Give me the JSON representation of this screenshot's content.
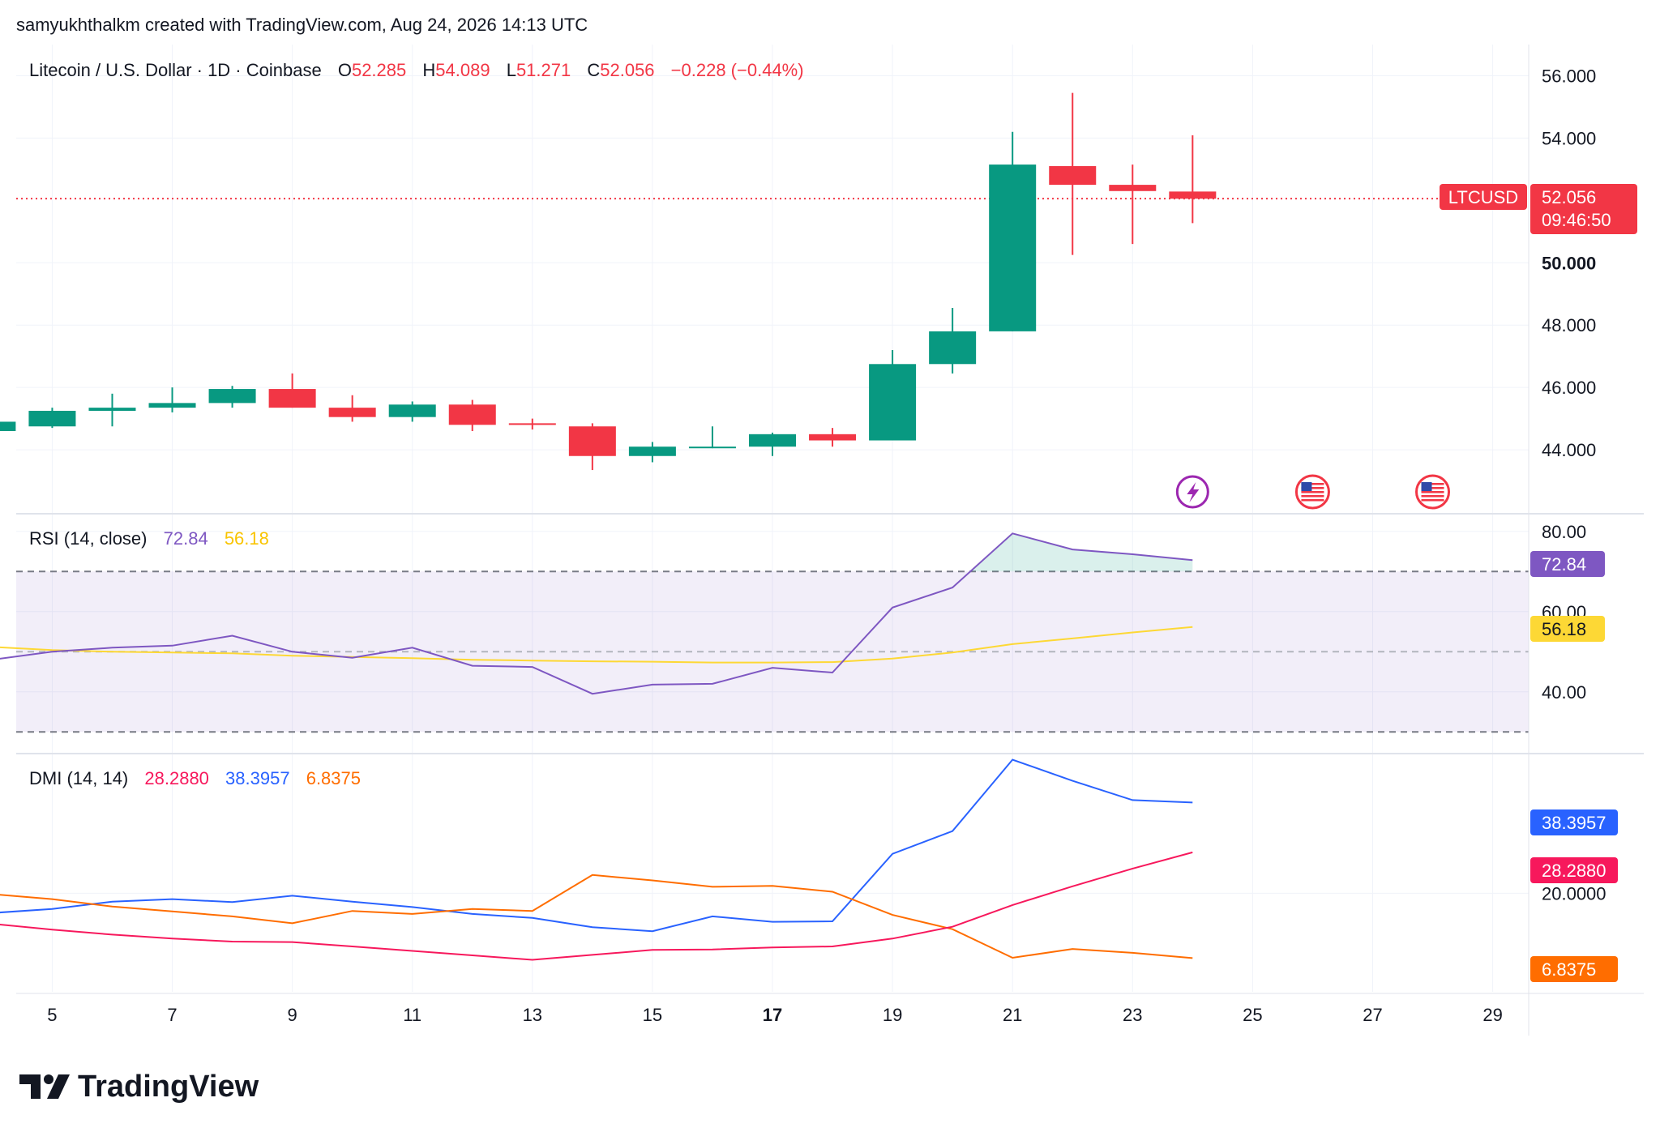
{
  "attribution": "samyukhthalkm created with TradingView.com, Aug 24, 2026 14:13 UTC",
  "brand": "TradingView",
  "colors": {
    "up": "#089981",
    "down": "#f23645",
    "rsi": "#7e57c2",
    "rsi_ma": "#fdd835",
    "dmi_plus": "#2962ff",
    "dmi_minus": "#ff6d00",
    "adx": "#f7185c",
    "rsi_band": "#7e57c2"
  },
  "header": {
    "symbol": "Litecoin / U.S. Dollar · 1D · Coinbase",
    "o_label": "O",
    "o_value": "52.285",
    "h_label": "H",
    "h_value": "54.089",
    "l_label": "L",
    "l_value": "51.271",
    "c_label": "C",
    "c_value": "52.056",
    "change": "−0.228 (−0.44%)"
  },
  "price_tag": {
    "ticker": "LTCUSD",
    "price": "52.056",
    "countdown": "09:46:50"
  },
  "events": [
    {
      "day": 24,
      "icon": "lightning-icon"
    },
    {
      "day": 26,
      "icon": "us-flag-icon"
    },
    {
      "day": 28,
      "icon": "us-flag-icon"
    }
  ],
  "rsi_panel": {
    "title": "RSI (14, close)",
    "rsi_value": "72.84",
    "ma_value": "56.18"
  },
  "dmi_panel": {
    "title": "DMI (14, 14)",
    "adx_value": "28.2880",
    "plus_value": "38.3957",
    "minus_value": "6.8375"
  },
  "chart_data": [
    {
      "type": "candlestick",
      "title": "Litecoin / U.S. Dollar · 1D · Coinbase",
      "x_ticks": [
        "5",
        "7",
        "9",
        "11",
        "13",
        "15",
        "17",
        "19",
        "21",
        "23",
        "25",
        "27",
        "29"
      ],
      "x_range": [
        4.4,
        29.6
      ],
      "y_ticks": [
        "44.000",
        "46.000",
        "48.000",
        "50.000",
        "54.000",
        "56.000"
      ],
      "ylim": [
        42.0,
        57.0
      ],
      "last_price": 52.056,
      "candles": [
        {
          "day": 4,
          "o": 44.6,
          "h": 45.3,
          "l": 44.5,
          "c": 44.9
        },
        {
          "day": 5,
          "o": 44.75,
          "h": 45.35,
          "l": 44.7,
          "c": 45.25
        },
        {
          "day": 6,
          "o": 45.25,
          "h": 45.8,
          "l": 44.75,
          "c": 45.35
        },
        {
          "day": 7,
          "o": 45.35,
          "h": 46.0,
          "l": 45.2,
          "c": 45.5
        },
        {
          "day": 8,
          "o": 45.5,
          "h": 46.05,
          "l": 45.35,
          "c": 45.95
        },
        {
          "day": 9,
          "o": 45.95,
          "h": 46.45,
          "l": 45.35,
          "c": 45.35
        },
        {
          "day": 10,
          "o": 45.35,
          "h": 45.75,
          "l": 44.9,
          "c": 45.05
        },
        {
          "day": 11,
          "o": 45.05,
          "h": 45.55,
          "l": 44.9,
          "c": 45.45
        },
        {
          "day": 12,
          "o": 45.45,
          "h": 45.6,
          "l": 44.6,
          "c": 44.8
        },
        {
          "day": 13,
          "o": 44.85,
          "h": 45.0,
          "l": 44.65,
          "c": 44.8
        },
        {
          "day": 14,
          "o": 44.75,
          "h": 44.85,
          "l": 43.35,
          "c": 43.8
        },
        {
          "day": 15,
          "o": 43.8,
          "h": 44.25,
          "l": 43.6,
          "c": 44.1
        },
        {
          "day": 16,
          "o": 44.1,
          "h": 44.75,
          "l": 44.05,
          "c": 44.1
        },
        {
          "day": 17,
          "o": 44.1,
          "h": 44.55,
          "l": 43.8,
          "c": 44.5
        },
        {
          "day": 18,
          "o": 44.5,
          "h": 44.7,
          "l": 44.1,
          "c": 44.3
        },
        {
          "day": 19,
          "o": 44.3,
          "h": 47.2,
          "l": 44.3,
          "c": 46.75
        },
        {
          "day": 20,
          "o": 46.75,
          "h": 48.55,
          "l": 46.45,
          "c": 47.8
        },
        {
          "day": 21,
          "o": 47.8,
          "h": 54.2,
          "l": 47.8,
          "c": 53.15
        },
        {
          "day": 22,
          "o": 53.1,
          "h": 55.45,
          "l": 50.25,
          "c": 52.5
        },
        {
          "day": 23,
          "o": 52.5,
          "h": 53.15,
          "l": 50.6,
          "c": 52.3
        },
        {
          "day": 24,
          "o": 52.285,
          "h": 54.089,
          "l": 51.271,
          "c": 52.056
        }
      ]
    },
    {
      "type": "line",
      "title": "RSI (14, close)",
      "y_ticks": [
        "40.00",
        "60.00",
        "80.00"
      ],
      "ylim": [
        25,
        84
      ],
      "bands": {
        "upper": 70,
        "middle": 50,
        "lower": 30
      },
      "x": [
        4,
        5,
        6,
        7,
        8,
        9,
        10,
        11,
        12,
        13,
        14,
        15,
        16,
        17,
        18,
        19,
        20,
        21,
        22,
        23,
        24
      ],
      "series": [
        {
          "name": "RSI",
          "values": [
            48.0,
            50.0,
            51.0,
            51.5,
            54.0,
            50.0,
            48.5,
            51.0,
            46.5,
            46.2,
            39.5,
            41.8,
            42.0,
            46.0,
            44.8,
            61.0,
            66.0,
            79.5,
            75.5,
            74.3,
            72.84
          ]
        },
        {
          "name": "RSI MA",
          "values": [
            51.2,
            50.4,
            50.0,
            49.8,
            49.6,
            49.0,
            48.7,
            48.4,
            48.0,
            47.8,
            47.6,
            47.5,
            47.3,
            47.3,
            47.4,
            48.3,
            49.8,
            51.9,
            53.3,
            54.8,
            56.18
          ]
        }
      ]
    },
    {
      "type": "line",
      "title": "DMI (14, 14)",
      "y_ticks": [
        "20.0000"
      ],
      "ylim": [
        0,
        48
      ],
      "x": [
        4,
        5,
        6,
        7,
        8,
        9,
        10,
        11,
        12,
        13,
        14,
        15,
        16,
        17,
        18,
        19,
        20,
        21,
        22,
        23,
        24
      ],
      "series": [
        {
          "name": "+DI",
          "values": [
            16.0,
            16.8,
            18.3,
            18.8,
            18.2,
            19.5,
            18.3,
            17.2,
            15.8,
            15.0,
            13.1,
            12.3,
            15.3,
            14.2,
            14.3,
            28.0,
            32.6,
            47.1,
            42.8,
            38.9,
            38.3957
          ]
        },
        {
          "name": "-DI",
          "values": [
            19.8,
            18.8,
            17.3,
            16.3,
            15.3,
            13.9,
            16.4,
            15.8,
            16.8,
            16.4,
            23.7,
            22.6,
            21.3,
            21.5,
            20.3,
            15.6,
            12.7,
            6.9,
            8.7,
            7.9,
            6.8375
          ]
        },
        {
          "name": "ADX",
          "values": [
            13.8,
            12.6,
            11.6,
            10.8,
            10.2,
            10.1,
            9.2,
            8.3,
            7.4,
            6.5,
            7.5,
            8.5,
            8.6,
            9.0,
            9.2,
            10.8,
            13.2,
            17.6,
            21.4,
            25.0,
            28.288
          ]
        }
      ]
    }
  ]
}
